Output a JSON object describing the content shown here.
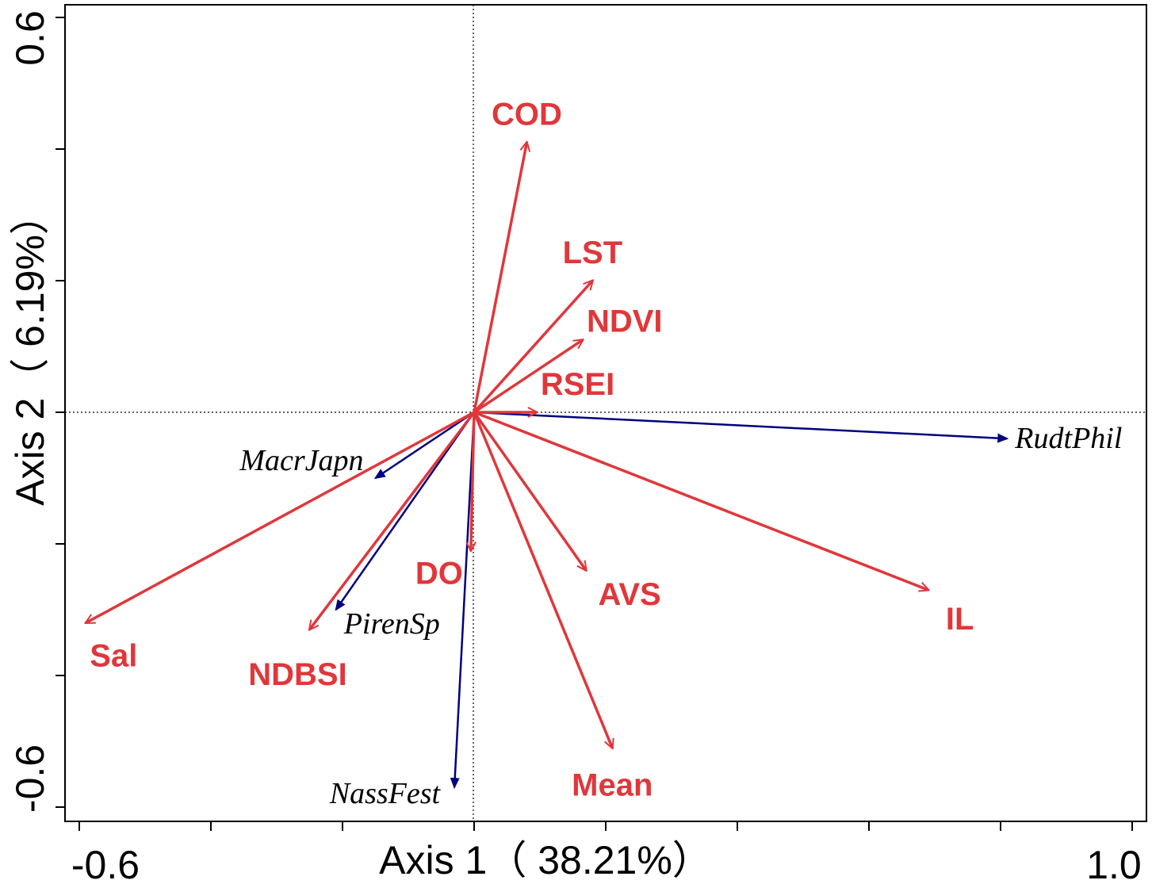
{
  "chart_data": {
    "type": "biplot",
    "xlabel": "Axis 1（ 38.21%）",
    "ylabel": "Axis 2（ 6.19%）",
    "xlim": [
      -0.6,
      1.0
    ],
    "ylim": [
      -0.6,
      0.6
    ],
    "x_tick_labels": [
      {
        "value": -0.6,
        "label": "-0.6"
      },
      {
        "value": 1.0,
        "label": "1.0"
      }
    ],
    "y_tick_labels": [
      {
        "value": 0.6,
        "label": "0.6"
      },
      {
        "value": -0.6,
        "label": "-0.6"
      }
    ],
    "x_minor_ticks": [
      -0.6,
      -0.4,
      -0.2,
      0.0,
      0.2,
      0.4,
      0.6,
      0.8,
      1.0
    ],
    "y_minor_ticks": [
      0.6,
      0.4,
      0.2,
      0.0,
      -0.2,
      -0.4,
      -0.6
    ],
    "environmental_variables": [
      {
        "name": "COD",
        "x": 0.08,
        "y": 0.41
      },
      {
        "name": "LST",
        "x": 0.18,
        "y": 0.2
      },
      {
        "name": "NDVI",
        "x": 0.165,
        "y": 0.11
      },
      {
        "name": "RSEI",
        "x": 0.095,
        "y": 0.0
      },
      {
        "name": "DO",
        "x": -0.005,
        "y": -0.21
      },
      {
        "name": "AVS",
        "x": 0.17,
        "y": -0.24
      },
      {
        "name": "Mean",
        "x": 0.21,
        "y": -0.51
      },
      {
        "name": "IL",
        "x": 0.69,
        "y": -0.27
      },
      {
        "name": "Sal",
        "x": -0.59,
        "y": -0.32
      },
      {
        "name": "NDBSI",
        "x": -0.25,
        "y": -0.33
      }
    ],
    "species": [
      {
        "name": "RudtPhil",
        "x": 0.81,
        "y": -0.04
      },
      {
        "name": "MacrJapn",
        "x": -0.15,
        "y": -0.1
      },
      {
        "name": "PirenSp",
        "x": -0.21,
        "y": -0.3
      },
      {
        "name": "NassFest",
        "x": -0.03,
        "y": -0.57
      }
    ],
    "colors": {
      "environment": "#e0373b",
      "species": "#000080",
      "axes": "#000000"
    }
  }
}
